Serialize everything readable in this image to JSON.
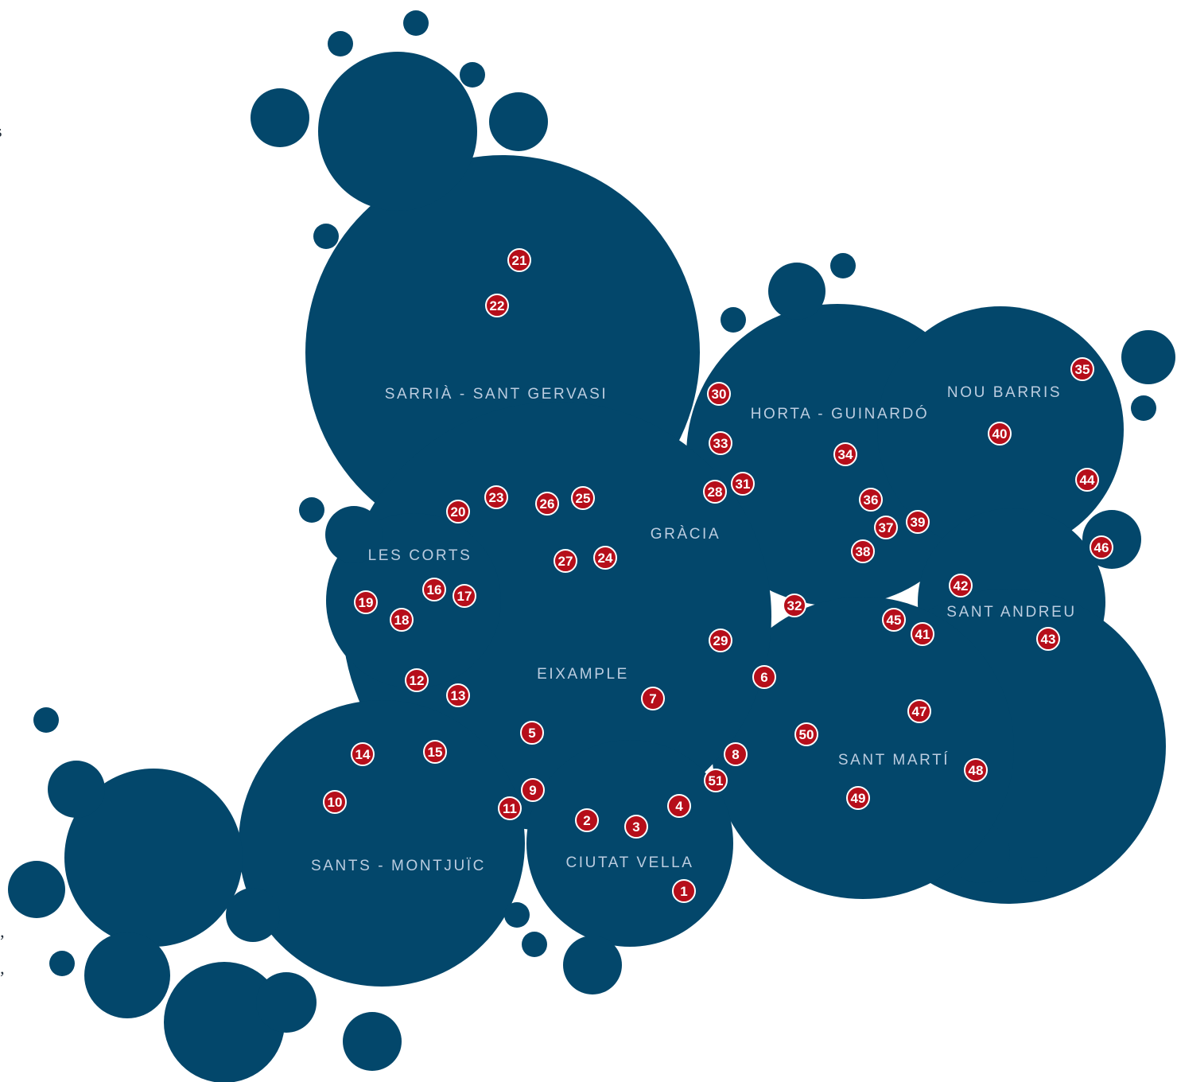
{
  "colors": {
    "bubble": "#03476b",
    "label": "#bccde0",
    "marker_fill": "#b60e1a",
    "marker_stroke": "#ffffff",
    "marker_text": "#ffffff"
  },
  "edge_fragments": [
    "s",
    "t,",
    "t,"
  ],
  "districts": [
    {
      "id": "sarria-sant-gervasi",
      "name": "SARRIÀ - SANT GERVASI"
    },
    {
      "id": "horta-guinardo",
      "name": "HORTA - GUINARDÓ"
    },
    {
      "id": "nou-barris",
      "name": "NOU BARRIS"
    },
    {
      "id": "gracia",
      "name": "GRÀCIA"
    },
    {
      "id": "les-corts",
      "name": "LES CORTS"
    },
    {
      "id": "sant-andreu",
      "name": "SANT ANDREU"
    },
    {
      "id": "eixample",
      "name": "EIXAMPLE"
    },
    {
      "id": "sant-marti",
      "name": "SANT MARTÍ"
    },
    {
      "id": "sants-montjuic",
      "name": "SANTS - MONTJUÏC"
    },
    {
      "id": "ciutat-vella",
      "name": "CIUTAT VELLA"
    }
  ],
  "markers": [
    "1",
    "2",
    "3",
    "4",
    "5",
    "6",
    "7",
    "8",
    "9",
    "10",
    "11",
    "12",
    "13",
    "14",
    "15",
    "16",
    "17",
    "18",
    "19",
    "20",
    "21",
    "22",
    "23",
    "24",
    "25",
    "26",
    "27",
    "28",
    "29",
    "30",
    "31",
    "32",
    "33",
    "34",
    "35",
    "36",
    "37",
    "38",
    "39",
    "40",
    "41",
    "42",
    "43",
    "44",
    "45",
    "46",
    "47",
    "48",
    "49",
    "50",
    "51"
  ]
}
